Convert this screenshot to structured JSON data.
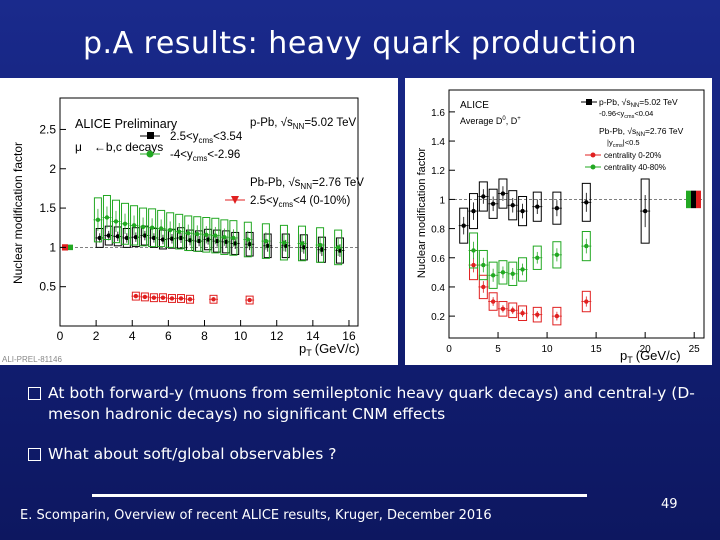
{
  "title": "p.A results: heavy quark production",
  "left_plot": {
    "ylabel": "Nuclear modification factor",
    "xlabel": "p",
    "xlabel_sub": "T",
    "xlabel_unit": "(GeV/c)",
    "legend_title": "ALICE Preliminary",
    "legend_system": "p-Pb, √s",
    "legend_system_sub": "NN",
    "legend_system_val": "=5.02 TeV",
    "legend_mu": "μ",
    "legend_mu_rest": "←b,c decays",
    "legend_fwd": "2.5<y",
    "legend_fwd_sub": "cms",
    "legend_fwd_rest": "<3.54",
    "legend_bwd": "-4<y",
    "legend_bwd_sub": "cms",
    "legend_bwd_rest": "<-2.96",
    "legend_pbpb": "Pb-Pb, √s",
    "legend_pbpb_sub": "NN",
    "legend_pbpb_val": "=2.76 TeV",
    "legend_pbpb2": "2.5<y",
    "legend_pbpb2_sub": "cms",
    "legend_pbpb2_rest": "<4 (0-10%)",
    "watermark": "ALI-PREL-81146",
    "yticks": [
      "0.5",
      "1",
      "1.5",
      "2",
      "2.5"
    ],
    "xticks": [
      "0",
      "2",
      "4",
      "6",
      "8",
      "10",
      "12",
      "14",
      "16"
    ]
  },
  "right_plot": {
    "ylabel": "Nuclear modification factor",
    "xlabel": "p",
    "xlabel_sub": "T",
    "xlabel_unit": "(GeV/c)",
    "legend_title": "ALICE",
    "legend_avg": "Average D",
    "legend_avg_rest": ", D",
    "legend_ppb": "p-Pb, √s",
    "legend_ppb_sub": "NN",
    "legend_ppb_val": "=5.02 TeV",
    "legend_ppb_y": "-0.96<y",
    "legend_ppb_y_sub": "cms",
    "legend_ppb_y_rest": "<0.04",
    "legend_pbpb": "Pb-Pb, √s",
    "legend_pbpb_sub": "NN",
    "legend_pbpb_val": "=2.76 TeV",
    "legend_pbpb_y": "|y",
    "legend_pbpb_y_sub": "cms",
    "legend_pbpb_y_rest": "|<0.5",
    "legend_c1": "centrality 0-20%",
    "legend_c2": "centrality 40-80%",
    "yticks": [
      "0.2",
      "0.4",
      "0.6",
      "0.8",
      "1",
      "1.2",
      "1.4",
      "1.6"
    ],
    "xticks": [
      "0",
      "5",
      "10",
      "15",
      "20",
      "25"
    ]
  },
  "chart_data": [
    {
      "type": "scatter",
      "ylim": [
        0,
        2.9
      ],
      "xlim": [
        0,
        16.5
      ],
      "series": [
        {
          "name": "2.5<ycms<3.54",
          "color": "#000000",
          "x": [
            2.2,
            2.7,
            3.2,
            3.7,
            4.2,
            4.7,
            5.2,
            5.7,
            6.2,
            6.7,
            7.2,
            7.7,
            8.2,
            8.7,
            9.2,
            9.7,
            10.5,
            11.5,
            12.5,
            13.5,
            14.5,
            15.5
          ],
          "y": [
            1.12,
            1.15,
            1.14,
            1.12,
            1.13,
            1.15,
            1.12,
            1.1,
            1.11,
            1.12,
            1.09,
            1.08,
            1.1,
            1.08,
            1.07,
            1.05,
            1.04,
            1.02,
            1.02,
            1.0,
            0.97,
            0.96
          ],
          "box": [
            0.12,
            0.12,
            0.12,
            0.12,
            0.12,
            0.12,
            0.12,
            0.12,
            0.12,
            0.13,
            0.13,
            0.13,
            0.13,
            0.14,
            0.14,
            0.14,
            0.15,
            0.15,
            0.15,
            0.16,
            0.16,
            0.16
          ]
        },
        {
          "name": "-4<ycms<-2.96",
          "color": "#22a822",
          "x": [
            2.1,
            2.6,
            3.1,
            3.6,
            4.1,
            4.6,
            5.1,
            5.6,
            6.1,
            6.6,
            7.1,
            7.6,
            8.1,
            8.6,
            9.1,
            9.6,
            10.4,
            11.4,
            12.4,
            13.4,
            14.4,
            15.4
          ],
          "y": [
            1.35,
            1.38,
            1.33,
            1.3,
            1.28,
            1.26,
            1.25,
            1.24,
            1.22,
            1.2,
            1.18,
            1.17,
            1.16,
            1.15,
            1.13,
            1.12,
            1.1,
            1.08,
            1.06,
            1.05,
            1.03,
            1.0
          ],
          "box": [
            0.28,
            0.28,
            0.27,
            0.26,
            0.25,
            0.24,
            0.24,
            0.23,
            0.22,
            0.22,
            0.22,
            0.22,
            0.22,
            0.22,
            0.22,
            0.22,
            0.22,
            0.22,
            0.22,
            0.22,
            0.22,
            0.22
          ]
        },
        {
          "name": "2.5<ycms<4 (0-10%)",
          "color": "#e02020",
          "x": [
            4.2,
            4.7,
            5.2,
            5.7,
            6.2,
            6.7,
            7.2,
            8.5,
            10.5
          ],
          "y": [
            0.38,
            0.37,
            0.36,
            0.36,
            0.35,
            0.35,
            0.34,
            0.34,
            0.33
          ],
          "box": [
            0.05,
            0.05,
            0.05,
            0.05,
            0.05,
            0.05,
            0.05,
            0.05,
            0.05
          ]
        }
      ]
    },
    {
      "type": "scatter",
      "ylim": [
        0.05,
        1.75
      ],
      "xlim": [
        0,
        26
      ],
      "series": [
        {
          "name": "p-Pb, √sNN=5.02 TeV",
          "color": "#000000",
          "x": [
            1.5,
            2.5,
            3.5,
            4.5,
            5.5,
            6.5,
            7.5,
            9.0,
            11.0,
            14.0,
            20.0
          ],
          "y": [
            0.82,
            0.92,
            1.02,
            0.97,
            1.04,
            0.96,
            0.92,
            0.95,
            0.94,
            0.98,
            0.92
          ],
          "box": [
            0.12,
            0.12,
            0.1,
            0.1,
            0.1,
            0.1,
            0.1,
            0.1,
            0.11,
            0.13,
            0.22
          ]
        },
        {
          "name": "centrality 0-20%",
          "color": "#e02020",
          "x": [
            2.5,
            3.5,
            4.5,
            5.5,
            6.5,
            7.5,
            9.0,
            11.0,
            14.0
          ],
          "y": [
            0.55,
            0.4,
            0.3,
            0.25,
            0.24,
            0.22,
            0.21,
            0.2,
            0.3
          ],
          "box": [
            0.1,
            0.08,
            0.06,
            0.05,
            0.05,
            0.05,
            0.05,
            0.06,
            0.07
          ]
        },
        {
          "name": "centrality 40-80%",
          "color": "#22a822",
          "x": [
            2.5,
            3.5,
            4.5,
            5.5,
            6.5,
            7.5,
            9.0,
            11.0,
            14.0
          ],
          "y": [
            0.65,
            0.55,
            0.48,
            0.5,
            0.49,
            0.52,
            0.6,
            0.62,
            0.68
          ],
          "box": [
            0.12,
            0.1,
            0.09,
            0.08,
            0.08,
            0.08,
            0.08,
            0.09,
            0.1
          ]
        }
      ]
    }
  ],
  "bullet1": "At both forward-y (muons from semileptonic heavy quark decays) and central-y (D-meson hadronic decays)  no significant CNM effects",
  "bullet2": "What about soft/global observables ?",
  "footer": "E. Scomparin, Overview of recent ALICE results, Kruger, December 2016",
  "page_number": "49"
}
